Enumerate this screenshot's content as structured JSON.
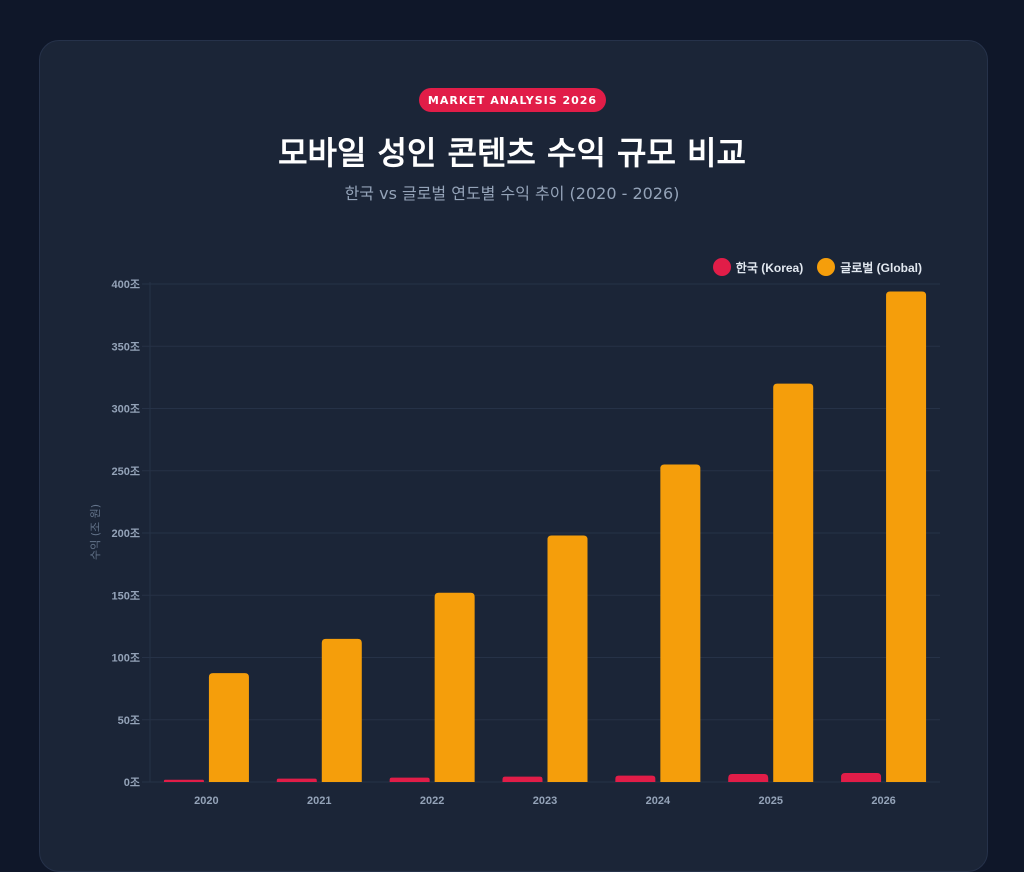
{
  "badge": "MARKET ANALYSIS 2026",
  "colors": {
    "korea": "#e11d48",
    "global": "#f59e0b",
    "background": "#0f1729",
    "card": "#1b2537"
  },
  "chart_data": {
    "type": "bar",
    "title": "모바일 성인 콘텐츠 수익 규모 비교",
    "subtitle": "한국 vs 글로벌 연도별 수익 추이 (2020 - 2026)",
    "xlabel": "",
    "ylabel": "수익 (조 원)",
    "ylim": [
      0,
      400
    ],
    "yticks": [
      "0조",
      "50조",
      "100조",
      "150조",
      "200조",
      "250조",
      "300조",
      "350조",
      "400조"
    ],
    "ytick_values": [
      0,
      50,
      100,
      150,
      200,
      250,
      300,
      350,
      400
    ],
    "grid": true,
    "legend_position": "top-right",
    "categories": [
      "2020",
      "2021",
      "2022",
      "2023",
      "2024",
      "2025",
      "2026"
    ],
    "series": [
      {
        "name": "한국 (Korea)",
        "color": "#e11d48",
        "values": [
          1.8,
          2.7,
          3.5,
          4.3,
          5.1,
          6.4,
          7.2
        ]
      },
      {
        "name": "글로벌 (Global)",
        "color": "#f59e0b",
        "values": [
          87.5,
          115,
          152,
          198,
          255,
          320,
          394
        ]
      }
    ]
  }
}
